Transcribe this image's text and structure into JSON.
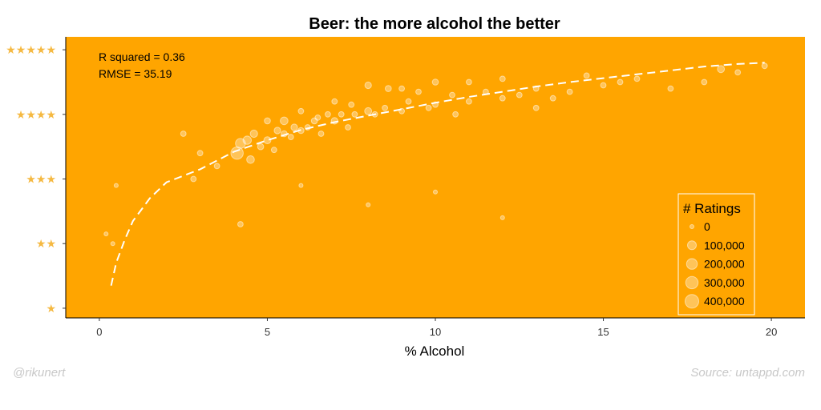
{
  "chart_data": {
    "type": "scatter",
    "title": "Beer: the more alcohol the better",
    "xlabel": "% Alcohol",
    "ylabel": "",
    "xlim": [
      -1,
      21
    ],
    "ylim": [
      0.85,
      5.2
    ],
    "x_ticks": [
      0,
      5,
      10,
      15,
      20
    ],
    "x_tick_labels": [
      "0",
      "5",
      "10",
      "15",
      "20"
    ],
    "y_ticks": [
      1,
      2,
      3,
      4,
      5
    ],
    "y_tick_labels": [
      "★",
      "★★",
      "★★★",
      "★★★★",
      "★★★★★"
    ],
    "grid": false,
    "annotations": [
      "R squared = 0.36",
      "RMSE = 35.19"
    ],
    "legend": {
      "title": "# Ratings",
      "placement": "bottom-right",
      "entries": [
        {
          "label": "0",
          "value": 0
        },
        {
          "label": "100,000",
          "value": 100000
        },
        {
          "label": "200,000",
          "value": 200000
        },
        {
          "label": "300,000",
          "value": 300000
        },
        {
          "label": "400,000",
          "value": 400000
        }
      ]
    },
    "trend_line": {
      "style": "dashed",
      "x": [
        0.35,
        0.5,
        0.75,
        1.0,
        1.5,
        2.0,
        3.0,
        4.0,
        5.0,
        6.0,
        7.0,
        8.0,
        9.0,
        10.0,
        11.0,
        12.0,
        13.0,
        14.0,
        15.0,
        16.0,
        17.0,
        18.0,
        19.0,
        19.8
      ],
      "y": [
        1.35,
        1.7,
        2.05,
        2.35,
        2.7,
        2.95,
        3.15,
        3.42,
        3.6,
        3.76,
        3.88,
        3.98,
        4.08,
        4.18,
        4.27,
        4.35,
        4.43,
        4.5,
        4.56,
        4.62,
        4.68,
        4.74,
        4.78,
        4.8
      ]
    },
    "points": {
      "description_free": true,
      "x": [
        0.2,
        0.4,
        0.5,
        4.1,
        4.2,
        4.4,
        4.5,
        4.6,
        4.8,
        5.0,
        5.0,
        5.2,
        5.3,
        5.5,
        5.5,
        5.7,
        5.8,
        6.0,
        6.0,
        6.2,
        6.4,
        6.5,
        6.6,
        6.8,
        7.0,
        7.0,
        7.2,
        7.4,
        7.5,
        7.6,
        8.0,
        8.0,
        8.2,
        8.5,
        8.6,
        9.0,
        9.0,
        9.2,
        9.5,
        9.8,
        10.0,
        10.0,
        10.5,
        10.6,
        11.0,
        11.0,
        11.5,
        12.0,
        12.0,
        12.5,
        13.0,
        13.0,
        13.5,
        14.0,
        14.5,
        15.0,
        15.5,
        16.0,
        17.0,
        18.0,
        18.5,
        19.0,
        19.8,
        3.0,
        3.5,
        2.5,
        2.8,
        4.2,
        6.0,
        8.0,
        10.0,
        12.0
      ],
      "y": [
        2.15,
        2.0,
        2.9,
        3.4,
        3.55,
        3.6,
        3.3,
        3.7,
        3.5,
        3.6,
        3.9,
        3.45,
        3.75,
        3.7,
        3.9,
        3.65,
        3.8,
        3.75,
        4.05,
        3.8,
        3.9,
        3.95,
        3.7,
        4.0,
        3.9,
        4.2,
        4.0,
        3.8,
        4.15,
        4.0,
        4.05,
        4.45,
        4.0,
        4.1,
        4.4,
        4.05,
        4.4,
        4.2,
        4.35,
        4.1,
        4.15,
        4.5,
        4.3,
        4.0,
        4.2,
        4.5,
        4.35,
        4.25,
        4.55,
        4.3,
        4.1,
        4.4,
        4.25,
        4.35,
        4.6,
        4.45,
        4.5,
        4.55,
        4.4,
        4.5,
        4.7,
        4.65,
        4.75,
        3.4,
        3.2,
        3.7,
        3.0,
        2.3,
        2.9,
        2.6,
        2.8,
        2.4
      ],
      "ratings": [
        0,
        0,
        0,
        300000,
        150000,
        80000,
        60000,
        50000,
        20000,
        40000,
        20000,
        10000,
        30000,
        20000,
        60000,
        10000,
        30000,
        20000,
        10000,
        10000,
        20000,
        10000,
        10000,
        10000,
        30000,
        10000,
        10000,
        10000,
        10000,
        10000,
        40000,
        30000,
        10000,
        10000,
        20000,
        10000,
        10000,
        10000,
        10000,
        10000,
        10000,
        20000,
        10000,
        10000,
        10000,
        10000,
        10000,
        10000,
        10000,
        10000,
        10000,
        10000,
        10000,
        10000,
        10000,
        10000,
        10000,
        10000,
        10000,
        10000,
        40000,
        10000,
        10000,
        10000,
        10000,
        10000,
        10000,
        10000,
        0,
        0,
        0,
        0
      ]
    }
  },
  "credits": {
    "left": "@rikunert",
    "right": "Source: untappd.com"
  },
  "colors": {
    "panel": "#ffa500",
    "point": "#ffffff",
    "star": "#f5b942",
    "trend": "#ffffff"
  }
}
